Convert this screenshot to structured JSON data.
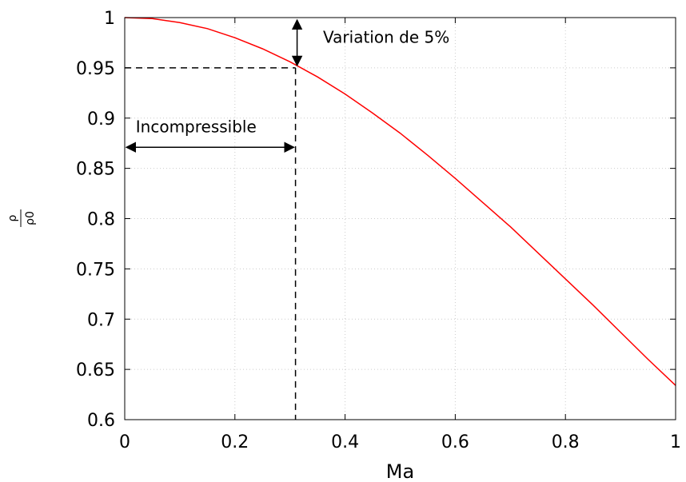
{
  "chart_data": {
    "type": "line",
    "xlabel": "Ma",
    "ylabel": {
      "numerator": "ρ",
      "denominator": "ρ0"
    },
    "xlim": [
      0,
      1
    ],
    "ylim": [
      0.6,
      1
    ],
    "xticks": [
      "0",
      "0.2",
      "0.4",
      "0.6",
      "0.8",
      "1"
    ],
    "yticks": [
      "0.6",
      "0.65",
      "0.7",
      "0.75",
      "0.8",
      "0.85",
      "0.9",
      "0.95",
      "1"
    ],
    "grid": true,
    "series": [
      {
        "color": "#ff0000",
        "x": [
          0,
          0.05,
          0.1,
          0.15,
          0.2,
          0.25,
          0.3,
          0.35,
          0.4,
          0.45,
          0.5,
          0.55,
          0.6,
          0.65,
          0.7,
          0.75,
          0.8,
          0.85,
          0.9,
          0.95,
          1
        ],
        "y": [
          1,
          0.999,
          0.995,
          0.989,
          0.98,
          0.969,
          0.956,
          0.941,
          0.924,
          0.905,
          0.885,
          0.863,
          0.84,
          0.816,
          0.792,
          0.766,
          0.74,
          0.714,
          0.687,
          0.66,
          0.634
        ]
      }
    ],
    "annotations": [
      {
        "text": "Variation de 5%",
        "x": 0.36,
        "y": 0.975
      },
      {
        "text": "Incompressible",
        "x": 0.02,
        "y": 0.886
      }
    ],
    "reference": {
      "x": 0.31,
      "y": 0.95
    }
  }
}
